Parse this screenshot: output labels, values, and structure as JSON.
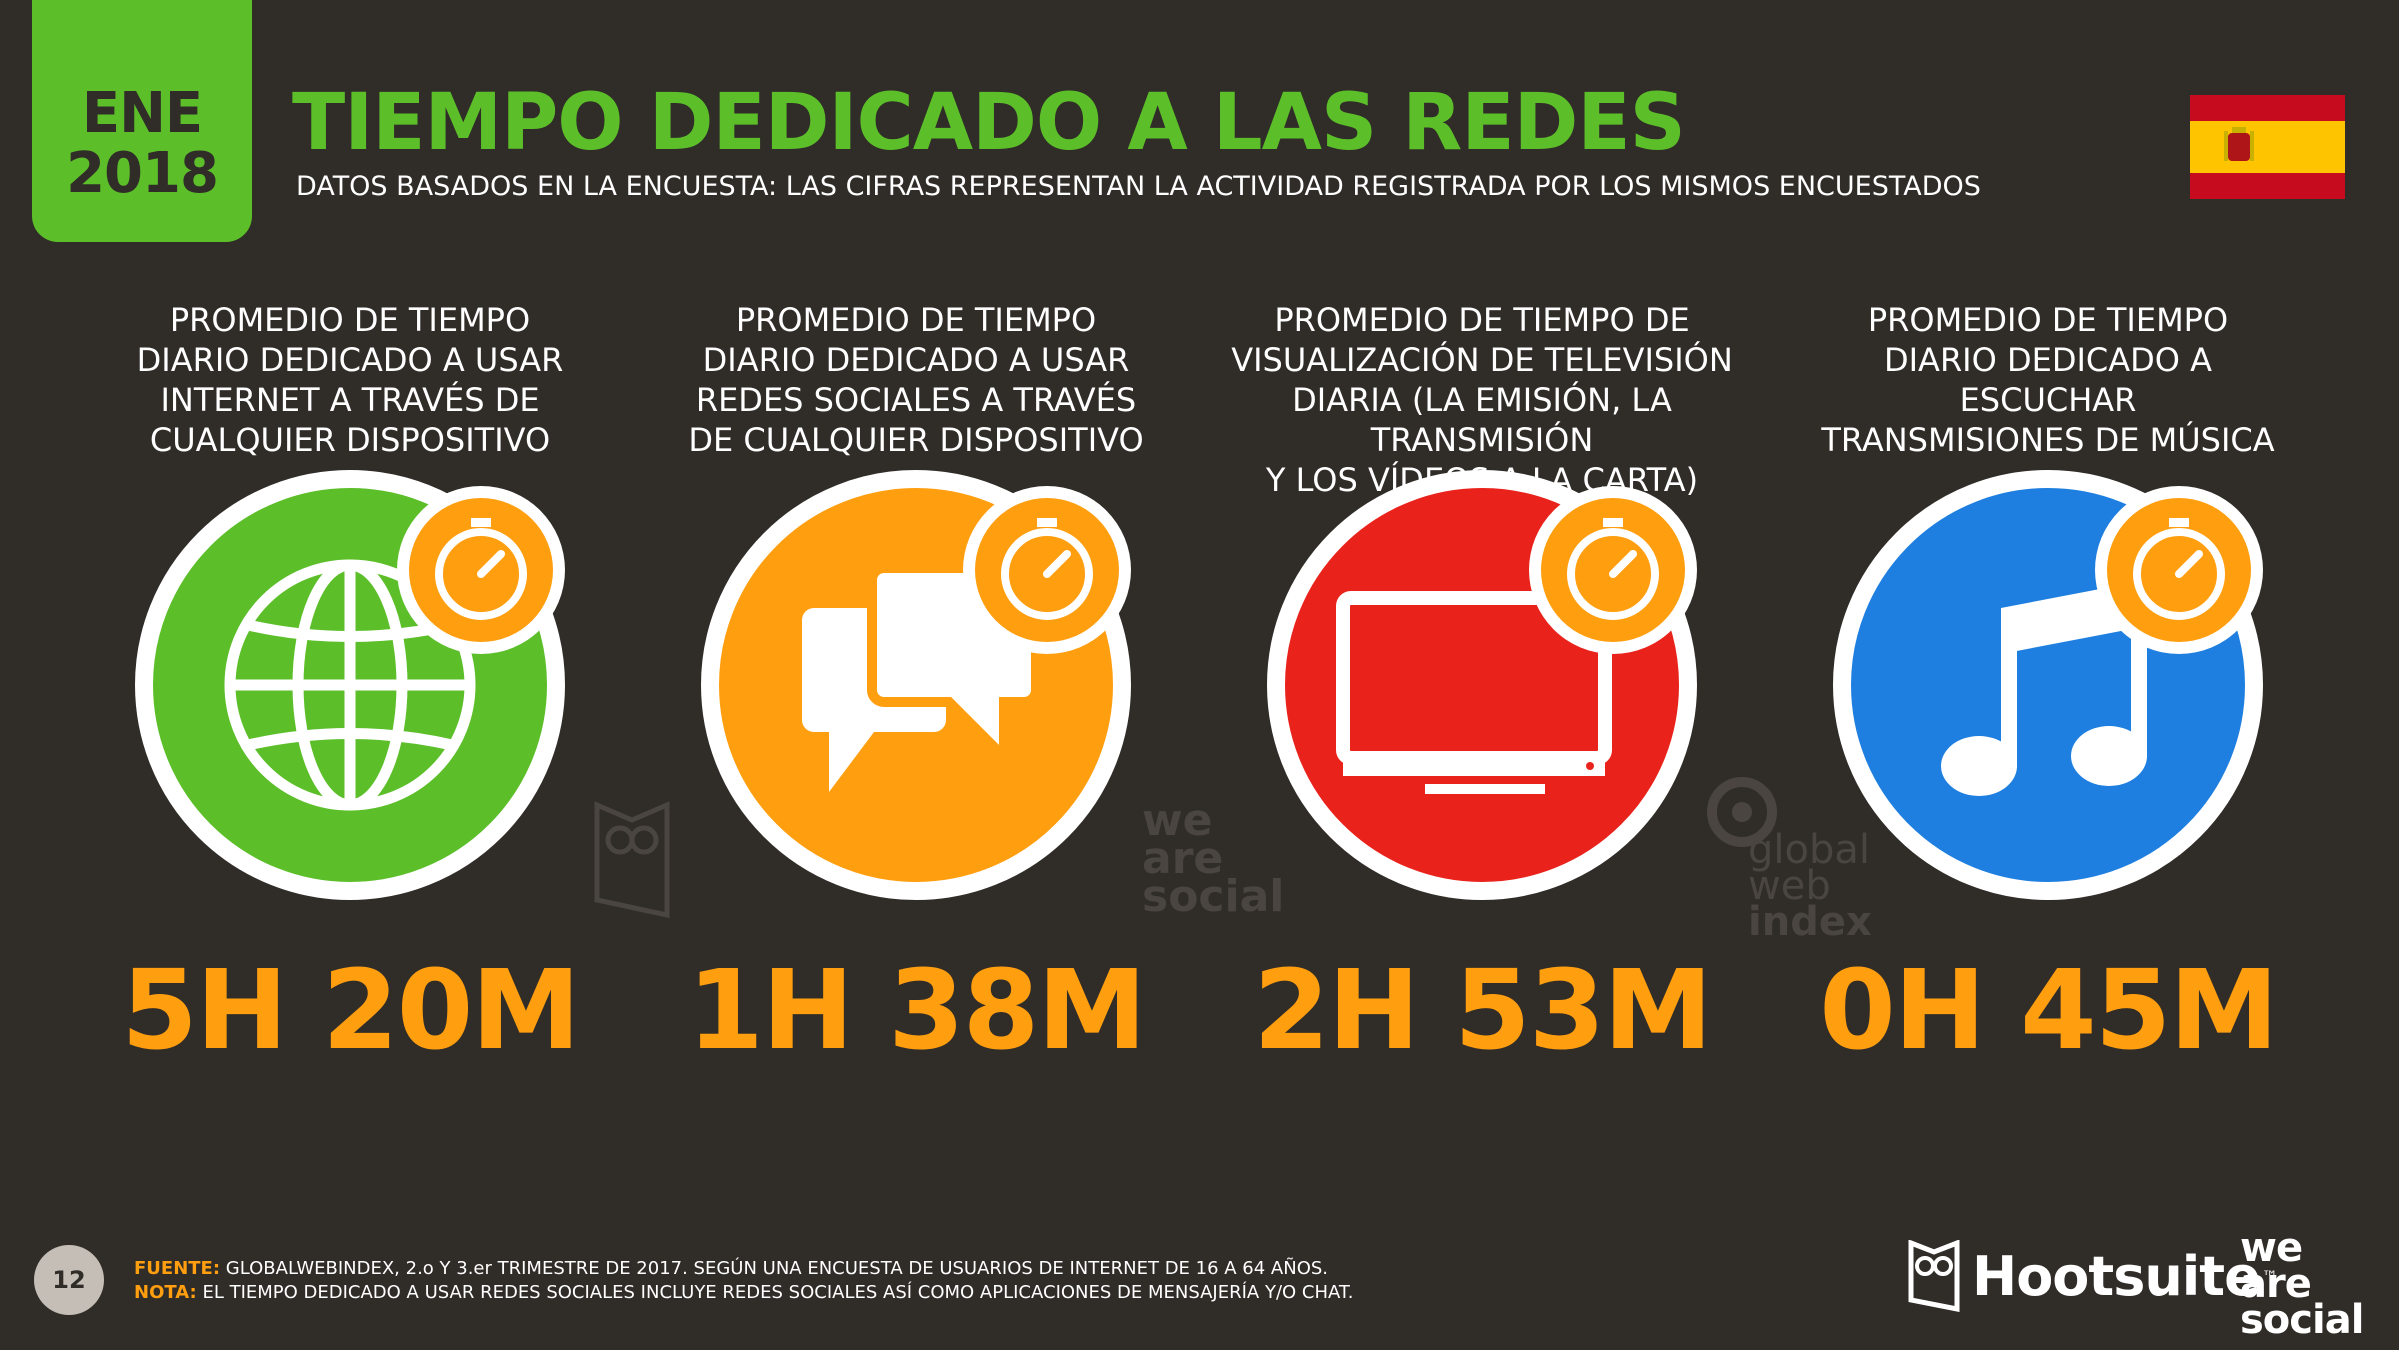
{
  "header": {
    "date_month": "ENE",
    "date_year": "2018",
    "title": "TIEMPO DEDICADO A LAS REDES",
    "subtitle": "DATOS BASADOS EN LA ENCUESTA: LAS CIFRAS REPRESENTAN LA ACTIVIDAD REGISTRADA POR LOS MISMOS ENCUESTADOS",
    "flag_icon": "spain-flag-icon"
  },
  "colors": {
    "background": "#302c28",
    "accent_green": "#5cbf2a",
    "accent_orange": "#ff9e0f",
    "internet": "#5cbf2a",
    "social": "#ff9e0f",
    "tv": "#e9231c",
    "music": "#1f7fe0"
  },
  "metrics": [
    {
      "caption_lines": [
        "PROMEDIO DE TIEMPO",
        "DIARIO DEDICADO A USAR",
        "INTERNET A TRAVÉS DE",
        "CUALQUIER DISPOSITIVO"
      ],
      "value": "5H 20M",
      "icon": "globe-icon",
      "color": "#5cbf2a"
    },
    {
      "caption_lines": [
        "PROMEDIO DE TIEMPO",
        "DIARIO DEDICADO A USAR",
        "REDES SOCIALES A TRAVÉS",
        "DE CUALQUIER DISPOSITIVO"
      ],
      "value": "1H 38M",
      "icon": "chat-bubbles-icon",
      "color": "#ff9e0f"
    },
    {
      "caption_lines": [
        "PROMEDIO DE TIEMPO DE",
        "VISUALIZACIÓN DE TELEVISIÓN",
        "DIARIA (LA EMISIÓN, LA TRANSMISIÓN",
        "Y LOS VÍDEOS A LA CARTA)"
      ],
      "value": "2H 53M",
      "icon": "television-icon",
      "color": "#e9231c"
    },
    {
      "caption_lines": [
        "PROMEDIO DE TIEMPO",
        "DIARIO DEDICADO A",
        "ESCUCHAR",
        "TRANSMISIONES DE MÚSICA"
      ],
      "value": "0H 45M",
      "icon": "music-note-icon",
      "color": "#1f7fe0"
    }
  ],
  "watermarks": {
    "was": [
      "we",
      "are",
      "social"
    ],
    "gwi": [
      "global",
      "web",
      "index"
    ]
  },
  "footer": {
    "page_number": "12",
    "source_label": "FUENTE:",
    "source_text": "GLOBALWEBINDEX, 2.o Y 3.er TRIMESTRE DE 2017. SEGÚN UNA ENCUESTA DE USUARIOS DE INTERNET DE 16 A 64 AÑOS.",
    "note_label": "NOTA:",
    "note_text": "EL TIEMPO DEDICADO A USAR REDES SOCIALES INCLUYE REDES SOCIALES ASÍ COMO APLICACIONES DE MENSAJERÍA Y/O CHAT.",
    "brand_hootsuite": "Hootsuite",
    "brand_hootsuite_tm": "™",
    "brand_was": [
      "we",
      "are",
      "social"
    ]
  }
}
